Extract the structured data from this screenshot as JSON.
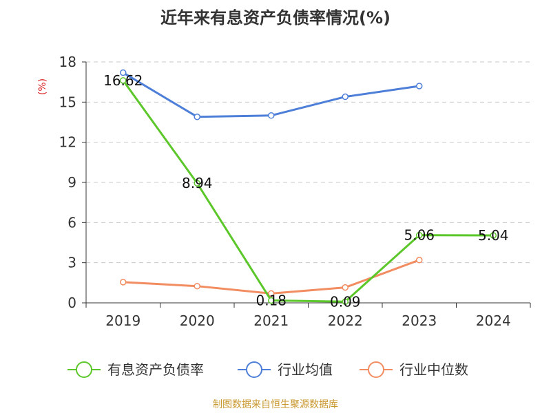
{
  "chart_data": {
    "type": "line",
    "title": "近年来有息资产负债率情况(%)",
    "ylabel": "(%)",
    "xlabel": "",
    "ylim": [
      0,
      18
    ],
    "yticks": [
      "0",
      "3",
      "6",
      "9",
      "12",
      "15",
      "18"
    ],
    "categories": [
      "2019",
      "2020",
      "2021",
      "2022",
      "2023",
      "2024"
    ],
    "grid": true,
    "legend_position": "bottom",
    "series": [
      {
        "name": "有息资产负债率",
        "color": "#5cc72b",
        "values": [
          16.62,
          8.94,
          0.18,
          0.09,
          5.06,
          5.04
        ],
        "labels": [
          "16.62",
          "8.94",
          "0.18",
          "0.09",
          "5.06",
          "5.04"
        ]
      },
      {
        "name": "行业均值",
        "color": "#4e7fd8",
        "values": [
          17.2,
          13.9,
          14.0,
          15.4,
          16.2,
          null
        ]
      },
      {
        "name": "行业中位数",
        "color": "#f28c61",
        "values": [
          1.55,
          1.25,
          0.7,
          1.15,
          3.2,
          null
        ]
      }
    ]
  },
  "source": "制图数据来自恒生聚源数据库"
}
